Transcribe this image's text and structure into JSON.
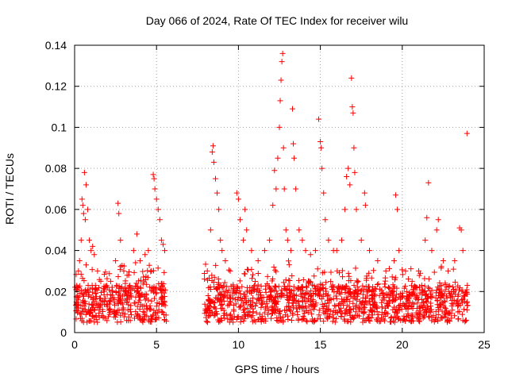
{
  "chart_data": {
    "type": "scatter",
    "title": "Day 066 of 2024, Rate Of TEC Index for receiver wilu",
    "xlabel": "GPS time / hours",
    "ylabel": "ROTI / TECUs",
    "xlim": [
      0,
      25
    ],
    "ylim": [
      0,
      0.14
    ],
    "xticks": [
      0,
      5,
      10,
      15,
      20,
      25
    ],
    "xtick_labels": [
      "0",
      "5",
      "10",
      "15",
      "20",
      "25"
    ],
    "yticks": [
      0,
      0.02,
      0.04,
      0.06,
      0.08,
      0.1,
      0.12,
      0.14
    ],
    "ytick_labels": [
      "0",
      "0.02",
      "0.04",
      "0.06",
      "0.08",
      "0.1",
      "0.12",
      "0.14"
    ],
    "grid": true,
    "marker": "+",
    "color": "#ff0000",
    "data_gap_hours": [
      5.6,
      7.9
    ],
    "series": [
      {
        "name": "ROTI",
        "points": [
          [
            0.2,
            0.012
          ],
          [
            0.3,
            0.035
          ],
          [
            0.4,
            0.045
          ],
          [
            0.45,
            0.065
          ],
          [
            0.5,
            0.062
          ],
          [
            0.55,
            0.058
          ],
          [
            0.6,
            0.078
          ],
          [
            0.65,
            0.055
          ],
          [
            0.7,
            0.072
          ],
          [
            0.8,
            0.06
          ],
          [
            0.9,
            0.045
          ],
          [
            1.0,
            0.04
          ],
          [
            1.1,
            0.042
          ],
          [
            1.2,
            0.038
          ],
          [
            1.4,
            0.03
          ],
          [
            1.6,
            0.025
          ],
          [
            1.8,
            0.02
          ],
          [
            2.0,
            0.022
          ],
          [
            2.2,
            0.025
          ],
          [
            2.5,
            0.035
          ],
          [
            2.65,
            0.063
          ],
          [
            2.7,
            0.058
          ],
          [
            2.8,
            0.045
          ],
          [
            3.0,
            0.03
          ],
          [
            3.3,
            0.028
          ],
          [
            3.6,
            0.04
          ],
          [
            3.8,
            0.048
          ],
          [
            4.0,
            0.035
          ],
          [
            4.3,
            0.038
          ],
          [
            4.5,
            0.04
          ],
          [
            4.7,
            0.03
          ],
          [
            4.8,
            0.077
          ],
          [
            4.85,
            0.075
          ],
          [
            4.9,
            0.07
          ],
          [
            5.0,
            0.065
          ],
          [
            5.1,
            0.06
          ],
          [
            5.2,
            0.055
          ],
          [
            5.3,
            0.045
          ],
          [
            5.4,
            0.043
          ],
          [
            5.5,
            0.04
          ],
          [
            8.1,
            0.03
          ],
          [
            8.3,
            0.05
          ],
          [
            8.4,
            0.088
          ],
          [
            8.45,
            0.091
          ],
          [
            8.5,
            0.083
          ],
          [
            8.6,
            0.075
          ],
          [
            8.7,
            0.068
          ],
          [
            8.8,
            0.06
          ],
          [
            8.9,
            0.045
          ],
          [
            9.0,
            0.04
          ],
          [
            9.2,
            0.035
          ],
          [
            9.5,
            0.03
          ],
          [
            9.9,
            0.068
          ],
          [
            10.0,
            0.065
          ],
          [
            10.1,
            0.055
          ],
          [
            10.3,
            0.045
          ],
          [
            10.4,
            0.06
          ],
          [
            10.5,
            0.05
          ],
          [
            10.8,
            0.04
          ],
          [
            11.2,
            0.035
          ],
          [
            11.6,
            0.04
          ],
          [
            11.9,
            0.045
          ],
          [
            12.1,
            0.062
          ],
          [
            12.2,
            0.079
          ],
          [
            12.3,
            0.07
          ],
          [
            12.4,
            0.085
          ],
          [
            12.5,
            0.1
          ],
          [
            12.55,
            0.113
          ],
          [
            12.6,
            0.123
          ],
          [
            12.65,
            0.132
          ],
          [
            12.7,
            0.136
          ],
          [
            12.75,
            0.09
          ],
          [
            12.8,
            0.07
          ],
          [
            12.9,
            0.05
          ],
          [
            13.0,
            0.045
          ],
          [
            13.2,
            0.04
          ],
          [
            13.3,
            0.109
          ],
          [
            13.35,
            0.092
          ],
          [
            13.4,
            0.085
          ],
          [
            13.5,
            0.07
          ],
          [
            13.7,
            0.05
          ],
          [
            13.9,
            0.045
          ],
          [
            14.1,
            0.04
          ],
          [
            14.4,
            0.038
          ],
          [
            14.7,
            0.04
          ],
          [
            14.9,
            0.104
          ],
          [
            15.0,
            0.093
          ],
          [
            15.05,
            0.09
          ],
          [
            15.1,
            0.08
          ],
          [
            15.2,
            0.068
          ],
          [
            15.3,
            0.055
          ],
          [
            15.5,
            0.045
          ],
          [
            15.8,
            0.04
          ],
          [
            16.0,
            0.04
          ],
          [
            16.3,
            0.045
          ],
          [
            16.5,
            0.06
          ],
          [
            16.6,
            0.076
          ],
          [
            16.7,
            0.08
          ],
          [
            16.8,
            0.072
          ],
          [
            16.9,
            0.124
          ],
          [
            16.95,
            0.11
          ],
          [
            17.0,
            0.107
          ],
          [
            17.05,
            0.09
          ],
          [
            17.1,
            0.078
          ],
          [
            17.2,
            0.06
          ],
          [
            17.5,
            0.045
          ],
          [
            17.7,
            0.068
          ],
          [
            17.75,
            0.062
          ],
          [
            18.0,
            0.04
          ],
          [
            18.5,
            0.035
          ],
          [
            19.0,
            0.03
          ],
          [
            19.5,
            0.035
          ],
          [
            19.6,
            0.067
          ],
          [
            19.7,
            0.06
          ],
          [
            19.8,
            0.04
          ],
          [
            20.2,
            0.03
          ],
          [
            20.6,
            0.025
          ],
          [
            21.0,
            0.03
          ],
          [
            21.4,
            0.045
          ],
          [
            21.5,
            0.056
          ],
          [
            21.6,
            0.073
          ],
          [
            21.8,
            0.04
          ],
          [
            22.1,
            0.05
          ],
          [
            22.2,
            0.055
          ],
          [
            22.5,
            0.035
          ],
          [
            22.8,
            0.03
          ],
          [
            23.2,
            0.035
          ],
          [
            23.5,
            0.051
          ],
          [
            23.6,
            0.05
          ],
          [
            23.7,
            0.04
          ],
          [
            23.95,
            0.097
          ]
        ]
      }
    ]
  }
}
